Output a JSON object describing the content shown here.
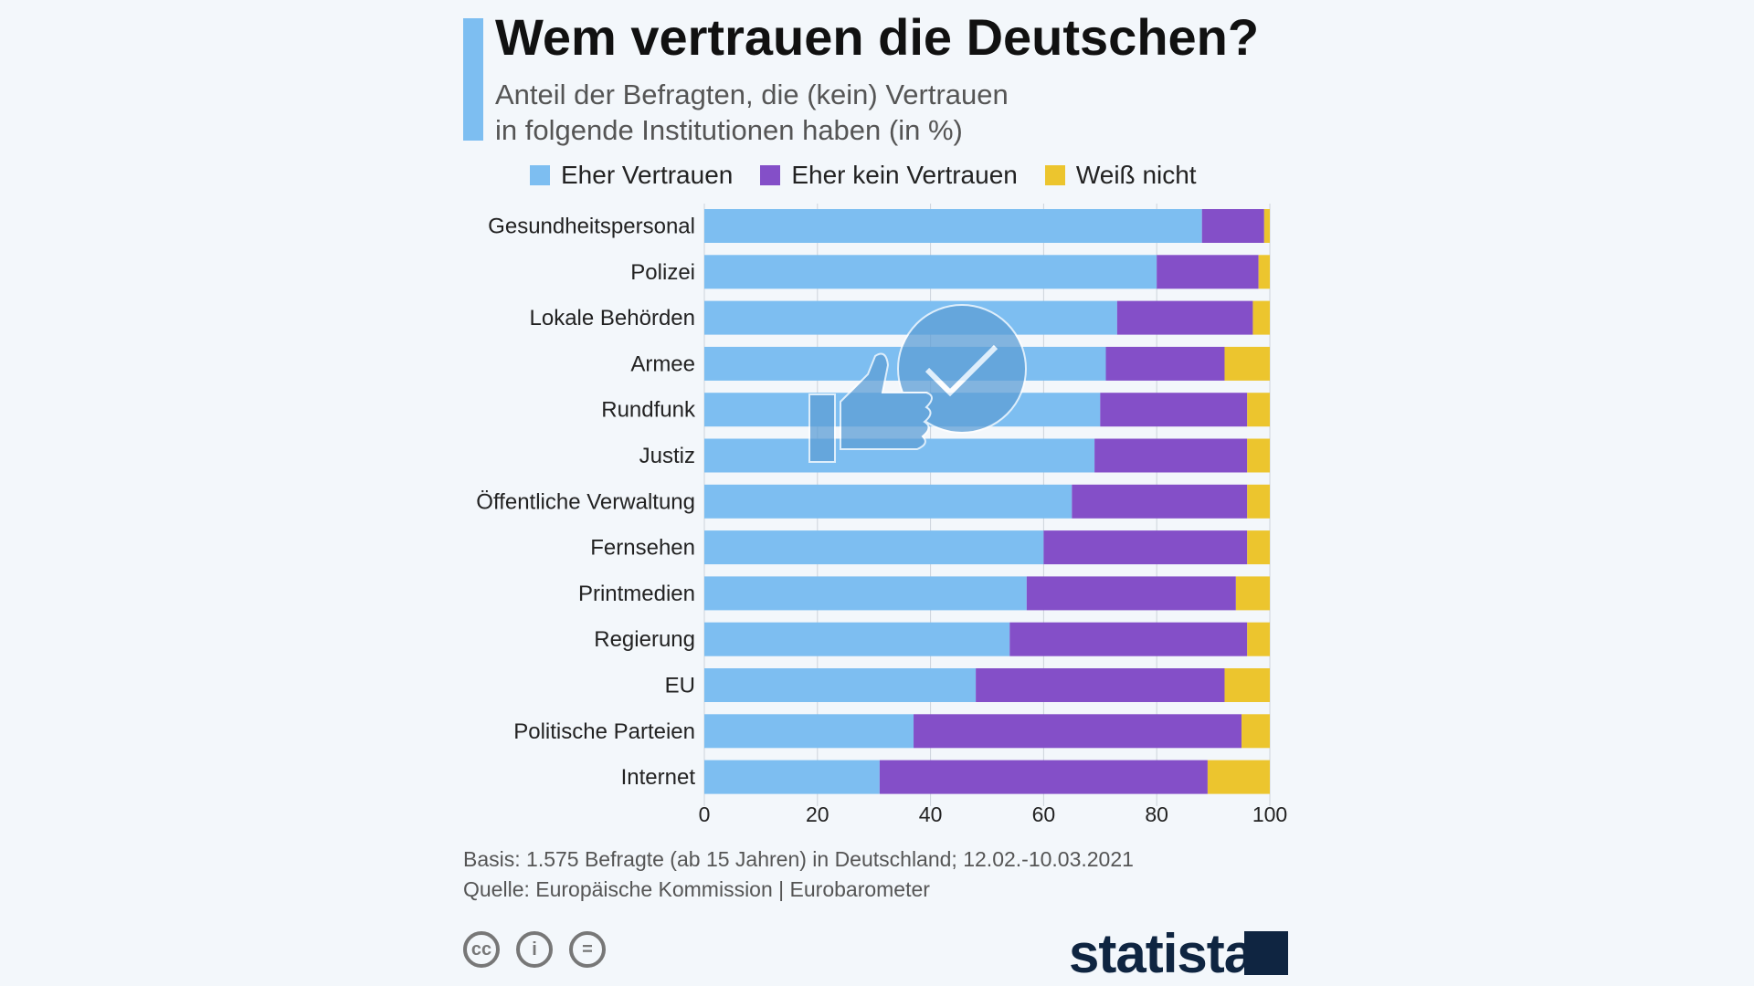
{
  "title": "Wem vertrauen die Deutschen?",
  "subtitle_line1": "Anteil der Befragten, die (kein) Vertrauen",
  "subtitle_line2": "in folgende Institutionen haben (in %)",
  "footer": {
    "basis": "Basis: 1.575 Befragte (ab 15 Jahren) in Deutschland; 12.02.-10.03.2021",
    "source": "Quelle: Europäische Kommission | Eurobarometer",
    "logo": "statista"
  },
  "colors": {
    "trust": "#7dbef1",
    "no_trust": "#844fc8",
    "dont_know": "#ecc52e"
  },
  "chart_data": {
    "type": "bar",
    "orientation": "horizontal",
    "stacked": true,
    "title": "Wem vertrauen die Deutschen?",
    "xlim": [
      0,
      100
    ],
    "xticks": [
      0,
      20,
      40,
      60,
      80,
      100
    ],
    "legend_position": "top",
    "categories": [
      "Gesundheitspersonal",
      "Polizei",
      "Lokale Behörden",
      "Armee",
      "Rundfunk",
      "Justiz",
      "Öffentliche Verwaltung",
      "Fernsehen",
      "Printmedien",
      "Regierung",
      "EU",
      "Politische Parteien",
      "Internet"
    ],
    "series": [
      {
        "name": "Eher Vertrauen",
        "values": [
          88,
          80,
          73,
          71,
          70,
          69,
          65,
          60,
          57,
          54,
          48,
          37,
          31
        ]
      },
      {
        "name": "Eher kein Vertrauen",
        "values": [
          11,
          18,
          24,
          21,
          26,
          27,
          31,
          36,
          37,
          42,
          44,
          58,
          58
        ]
      },
      {
        "name": "Weiß nicht",
        "values": [
          1,
          2,
          3,
          8,
          4,
          4,
          4,
          4,
          6,
          4,
          8,
          5,
          11
        ]
      }
    ]
  }
}
